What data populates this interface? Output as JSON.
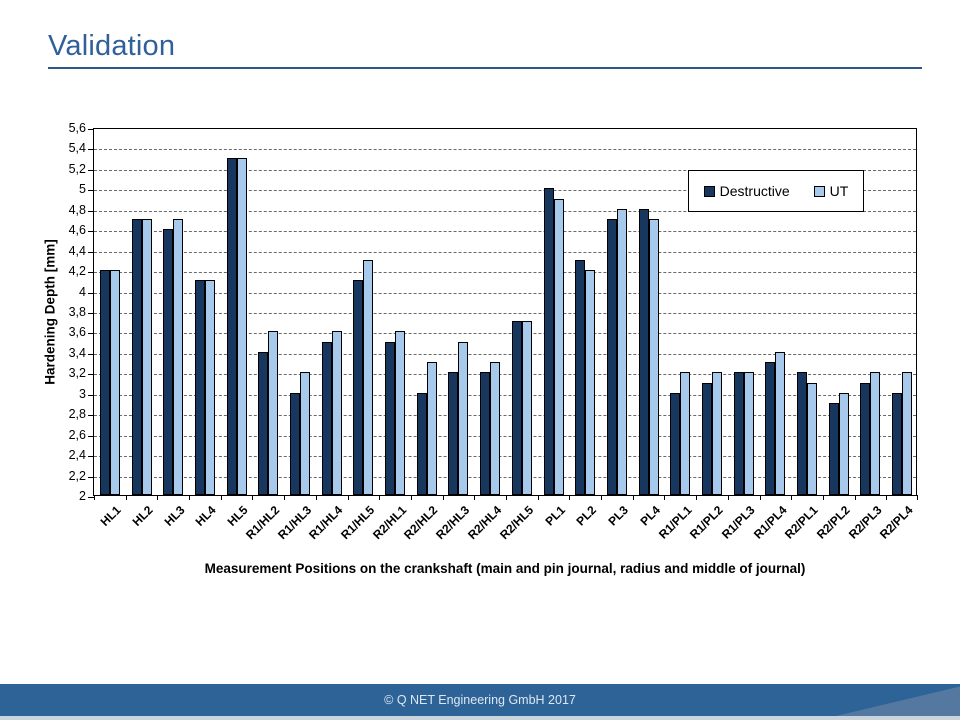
{
  "header": {
    "title": "Validation",
    "accent_color": "#30609A"
  },
  "chart_data": {
    "type": "bar",
    "title": "",
    "categories": [
      "HL1",
      "HL2",
      "HL3",
      "HL4",
      "HL5",
      "R1/HL2",
      "R1/HL3",
      "R1/HL4",
      "R1/HL5",
      "R2/HL1",
      "R2/HL2",
      "R2/HL3",
      "R2/HL4",
      "R2/HL5",
      "PL1",
      "PL2",
      "PL3",
      "PL4",
      "R1/PL1",
      "R1/PL2",
      "R1/PL3",
      "R1/PL4",
      "R2/PL1",
      "R2/PL2",
      "R2/PL3",
      "R2/PL4"
    ],
    "series": [
      {
        "name": "Destructive",
        "color": "#17375E",
        "values": [
          4.2,
          4.7,
          4.6,
          4.1,
          5.3,
          3.4,
          3.0,
          3.5,
          4.1,
          3.5,
          3.0,
          3.2,
          3.2,
          3.7,
          5.0,
          4.3,
          4.7,
          4.8,
          3.0,
          3.1,
          3.2,
          3.3,
          3.2,
          2.9,
          3.1,
          3.0
        ]
      },
      {
        "name": "UT",
        "color": "#A6C9EC",
        "values": [
          4.2,
          4.7,
          4.7,
          4.1,
          5.3,
          3.6,
          3.2,
          3.6,
          4.3,
          3.6,
          3.3,
          3.5,
          3.3,
          3.7,
          4.9,
          4.2,
          4.8,
          4.7,
          3.2,
          3.2,
          3.2,
          3.4,
          3.1,
          3.0,
          3.2,
          3.2
        ]
      }
    ],
    "ylabel": "Hardening Depth [mm]",
    "xlabel": "Measurement Positions on the crankshaft (main and pin journal, radius and middle of journal)",
    "ylim": [
      2,
      5.6
    ],
    "ytick_step": 0.2,
    "ytick_labels": [
      "5,6",
      "5,4",
      "5,2",
      "5",
      "4,8",
      "4,6",
      "4,4",
      "4,2",
      "4",
      "3,8",
      "3,6",
      "3,4",
      "3,2",
      "3",
      "2,8",
      "2,6",
      "2,4",
      "2,2",
      "2"
    ],
    "grid": "horizontal-dashed",
    "legend_position": "top-right-inside"
  },
  "footer": {
    "copyright": "© Q NET Engineering GmbH 2017",
    "bar_color": "#2D6397",
    "triangle_color": "#54789F"
  }
}
